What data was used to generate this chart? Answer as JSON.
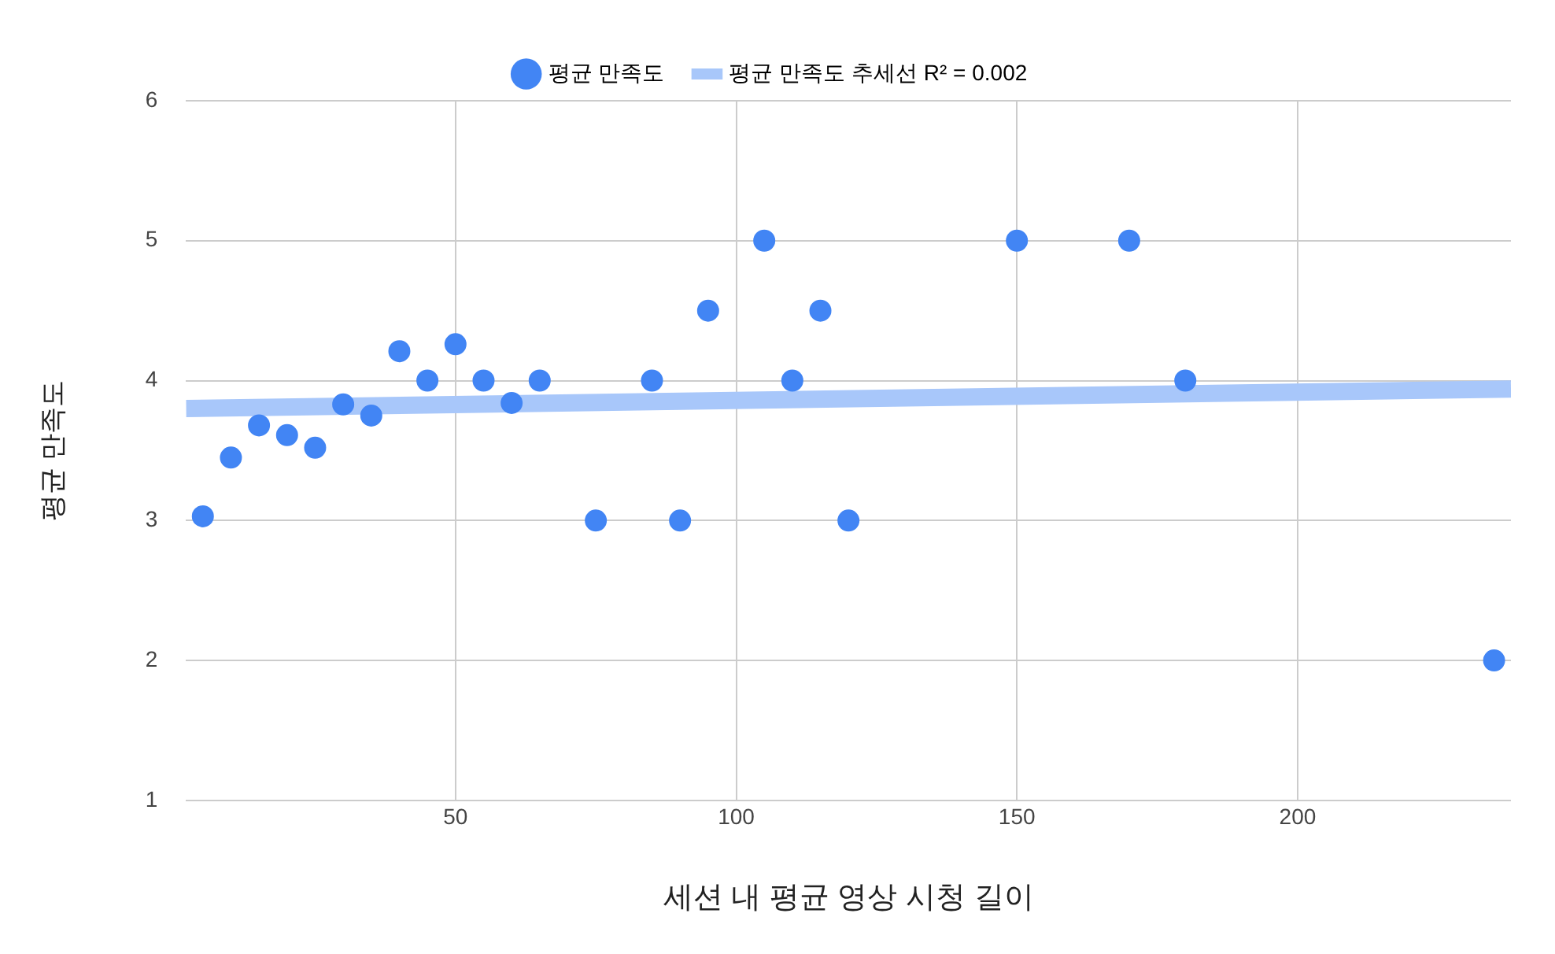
{
  "chart_data": {
    "type": "scatter",
    "xlabel": "세션 내 평균 영상 시청 길이",
    "ylabel": "평균 만족도",
    "x": [
      5,
      10,
      15,
      20,
      25,
      30,
      35,
      40,
      45,
      50,
      55,
      60,
      65,
      75,
      85,
      90,
      95,
      105,
      110,
      115,
      120,
      150,
      170,
      180,
      235
    ],
    "series": [
      {
        "name": "평균 만족도",
        "color": "#4285f4",
        "marker": "circle",
        "values": [
          3.03,
          3.45,
          3.68,
          3.61,
          3.52,
          3.83,
          3.75,
          4.21,
          4.0,
          4.26,
          4.0,
          3.84,
          4.0,
          3.0,
          4.0,
          3.0,
          4.5,
          5.0,
          4.0,
          4.5,
          3.0,
          5.0,
          5.0,
          4.0,
          2.0
        ]
      },
      {
        "name": "평균 만족도 추세선 R² = 0.002",
        "type": "line",
        "marker": "none",
        "color": "#a8c7fa",
        "x": [
          2,
          238
        ],
        "values": [
          3.8,
          3.94
        ]
      }
    ],
    "xlim": [
      2,
      238
    ],
    "xticks": [
      50,
      100,
      150,
      200
    ],
    "ylim": [
      1,
      6
    ],
    "yticks": [
      1,
      2,
      3,
      4,
      5,
      6
    ],
    "grid": true,
    "legend": "top"
  }
}
